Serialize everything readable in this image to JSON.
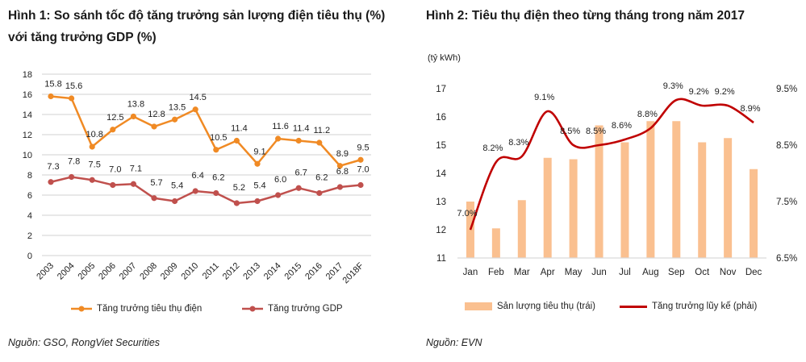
{
  "chart_data": [
    {
      "type": "line",
      "title": "Hình 1: So sánh tốc độ tăng trưởng sản lượng điện tiêu thụ (%) với tăng trưởng GDP (%)",
      "categories": [
        "2003",
        "2004",
        "2005",
        "2006",
        "2007",
        "2008",
        "2009",
        "2010",
        "2011",
        "2012",
        "2013",
        "2014",
        "2015",
        "2016",
        "2017",
        "2018F"
      ],
      "series": [
        {
          "name": "Tăng trưởng tiêu thụ điện",
          "color": "#f08a24",
          "values": [
            15.8,
            15.6,
            10.8,
            12.5,
            13.8,
            12.8,
            13.5,
            14.5,
            10.5,
            11.4,
            9.1,
            11.6,
            11.4,
            11.2,
            8.9,
            9.5
          ],
          "labels": [
            "15.8",
            "15.6",
            "10.8",
            "12.5",
            "13.8",
            "12.8",
            "13.5",
            "14.5",
            "10.5",
            "11.4",
            "9.1",
            "11.6",
            "11.4",
            "11.2",
            "8.9",
            "9.5"
          ]
        },
        {
          "name": "Tăng trưởng GDP",
          "color": "#c0504d",
          "values": [
            7.3,
            7.8,
            7.5,
            7.0,
            7.1,
            5.7,
            5.4,
            6.4,
            6.2,
            5.2,
            5.4,
            6.0,
            6.7,
            6.2,
            6.8,
            7.0
          ],
          "labels": [
            "7.3",
            "7.8",
            "7.5",
            "7.0",
            "7.1",
            "5.7",
            "5.4",
            "6.4",
            "6.2",
            "5.2",
            "5.4",
            "6.0",
            "6.7",
            "6.2",
            "6.8",
            "7.0"
          ]
        }
      ],
      "ylim": [
        0,
        18
      ],
      "yticks": [
        "0",
        "2",
        "4",
        "6",
        "8",
        "10",
        "12",
        "14",
        "16",
        "18"
      ],
      "grid": true,
      "legend": "bottom",
      "source": "Nguồn: GSO, RongViet Securities"
    },
    {
      "type": "bar+line",
      "title": "Hình 2: Tiêu thụ điện theo từng tháng trong năm 2017",
      "ylabel": "(tỷ kWh)",
      "categories": [
        "Jan",
        "Feb",
        "Mar",
        "Apr",
        "May",
        "Jun",
        "Jul",
        "Aug",
        "Sep",
        "Oct",
        "Nov",
        "Dec"
      ],
      "series": [
        {
          "name": "Sản lượng tiêu thụ (trái)",
          "type": "bar",
          "axis": "left",
          "color": "#fac090",
          "values": [
            13.0,
            12.05,
            13.05,
            14.55,
            14.5,
            15.7,
            15.1,
            15.85,
            15.85,
            15.1,
            15.25,
            14.15
          ]
        },
        {
          "name": "Tăng trưởng lũy kế (phải)",
          "type": "line",
          "axis": "right",
          "color": "#c00000",
          "values": [
            7.0,
            8.2,
            8.3,
            9.1,
            8.5,
            8.5,
            8.6,
            8.8,
            9.3,
            9.2,
            9.2,
            8.9
          ],
          "labels": [
            "7.0%",
            "8.2%",
            "8.3%",
            "9.1%",
            "8.5%",
            "8.5%",
            "8.6%",
            "8.8%",
            "9.3%",
            "9.2%",
            "9.2%",
            "8.9%"
          ]
        }
      ],
      "ylim_left": [
        11,
        17
      ],
      "yticks_left": [
        "11",
        "12",
        "13",
        "14",
        "15",
        "16",
        "17"
      ],
      "ylim_right": [
        6.5,
        9.5
      ],
      "yticks_right": [
        "6.5%",
        "7.5%",
        "8.5%",
        "9.5%"
      ],
      "grid": false,
      "legend": "bottom",
      "source": "Nguồn: EVN"
    }
  ]
}
